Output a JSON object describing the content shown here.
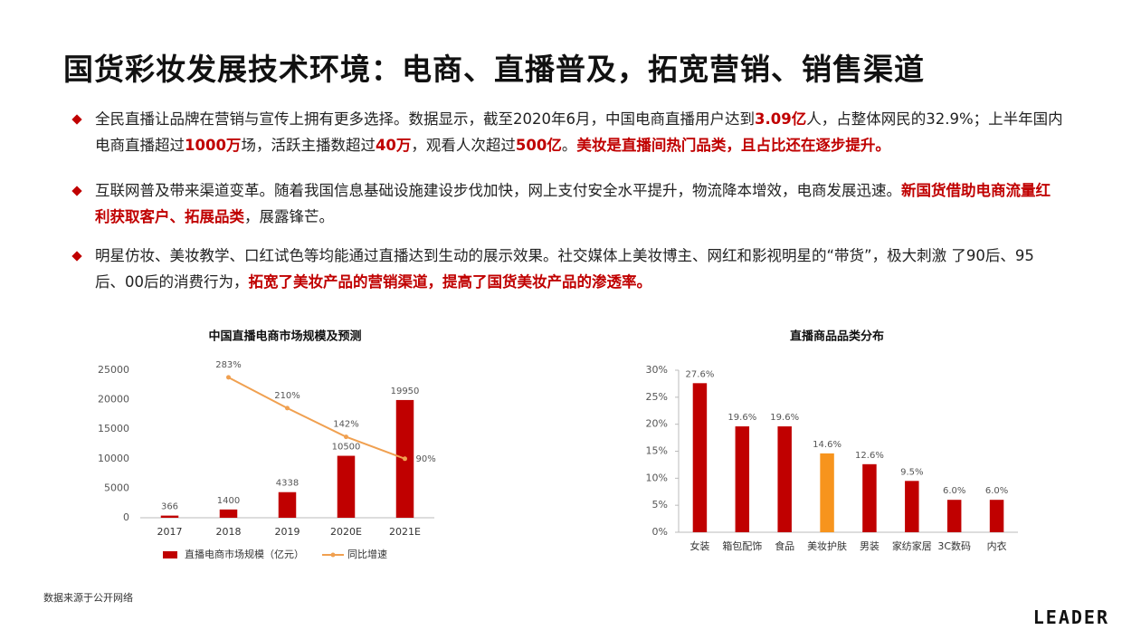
{
  "title": "国货彩妆发展技术环境：电商、直播普及，拓宽营销、销售渠道",
  "bullets": [
    [
      {
        "text": "全民直播让品牌在营销与宣传上拥有更多选择。数据显示，截至2020年6月，中国电商直播用户达到",
        "emphasis": false
      },
      {
        "text": "3.09亿",
        "emphasis": true
      },
      {
        "text": "人，占整体网民的32.9%；上半年国内电商直播超过",
        "emphasis": false
      },
      {
        "text": "1000万",
        "emphasis": true
      },
      {
        "text": "场，活跃主播数超过",
        "emphasis": false
      },
      {
        "text": "40万",
        "emphasis": true
      },
      {
        "text": "，观看人次超过",
        "emphasis": false
      },
      {
        "text": "500亿",
        "emphasis": true
      },
      {
        "text": "。",
        "emphasis": false
      },
      {
        "text": "美妆是直播间热门品类，且占比还在逐步提升。",
        "emphasis": true
      }
    ],
    [
      {
        "text": "互联网普及带来渠道变革。随着我国信息基础设施建设步伐加快，网上支付安全水平提升，物流降本增效，电商发展迅速。",
        "emphasis": false
      },
      {
        "text": "新国货借助电商流量红利获取客户、拓展品类",
        "emphasis": true
      },
      {
        "text": "，展露锋芒。",
        "emphasis": false
      }
    ],
    [
      {
        "text": "明星仿妆、美妆教学、口红试色等均能通过直播达到生动的展示效果。社交媒体上美妆博主、网红和影视明星的“带货”，极大刺激 了90后、95后、00后的消费行为，",
        "emphasis": false
      },
      {
        "text": "拓宽了美妆产品的营销渠道，提高了国货美妆产品的渗透率。",
        "emphasis": true
      }
    ]
  ],
  "chart_data": [
    {
      "type": "bar",
      "title": "中国直播电商市场规模及预测",
      "categories": [
        "2017",
        "2018",
        "2019",
        "2020E",
        "2021E"
      ],
      "series": [
        {
          "name": "直播电商市场规模（亿元）",
          "color": "#c00000",
          "values": [
            366,
            1400,
            4338,
            10500,
            19950
          ]
        },
        {
          "name": "同比增速",
          "type": "line",
          "axis": "y2",
          "color": "#f0a050",
          "values": [
            null,
            283,
            210,
            142,
            90
          ],
          "value_labels": [
            null,
            "283%",
            "210%",
            "142%",
            "90%"
          ]
        }
      ],
      "ylim": [
        0,
        25000
      ],
      "yticks": [
        0,
        5000,
        10000,
        15000,
        20000,
        25000
      ],
      "y2lim": [
        -50,
        300
      ],
      "legend": "bottom",
      "grid": false
    },
    {
      "type": "bar",
      "title": "直播商品品类分布",
      "categories": [
        "女装",
        "箱包配饰",
        "食品",
        "美妆护肤",
        "男装",
        "家纺家居",
        "3C数码",
        "内衣"
      ],
      "values": [
        27.6,
        19.6,
        19.6,
        14.6,
        12.6,
        9.5,
        6.0,
        6.0
      ],
      "value_labels": [
        "27.6%",
        "19.6%",
        "19.6%",
        "14.6%",
        "12.6%",
        "9.5%",
        "6.0%",
        "6.0%"
      ],
      "colors": [
        "#c00000",
        "#c00000",
        "#c00000",
        "#f7941d",
        "#c00000",
        "#c00000",
        "#c00000",
        "#c00000"
      ],
      "ylim": [
        0,
        30
      ],
      "yticks": [
        {
          "value": 0,
          "label": "0%"
        },
        {
          "value": 5,
          "label": "5%"
        },
        {
          "value": 10,
          "label": "10%"
        },
        {
          "value": 15,
          "label": "15%"
        },
        {
          "value": 20,
          "label": "20%"
        },
        {
          "value": 25,
          "label": "25%"
        },
        {
          "value": 30,
          "label": "30%"
        }
      ],
      "grid": false
    }
  ],
  "source": "数据来源于公开网络",
  "logo": "LEADER"
}
